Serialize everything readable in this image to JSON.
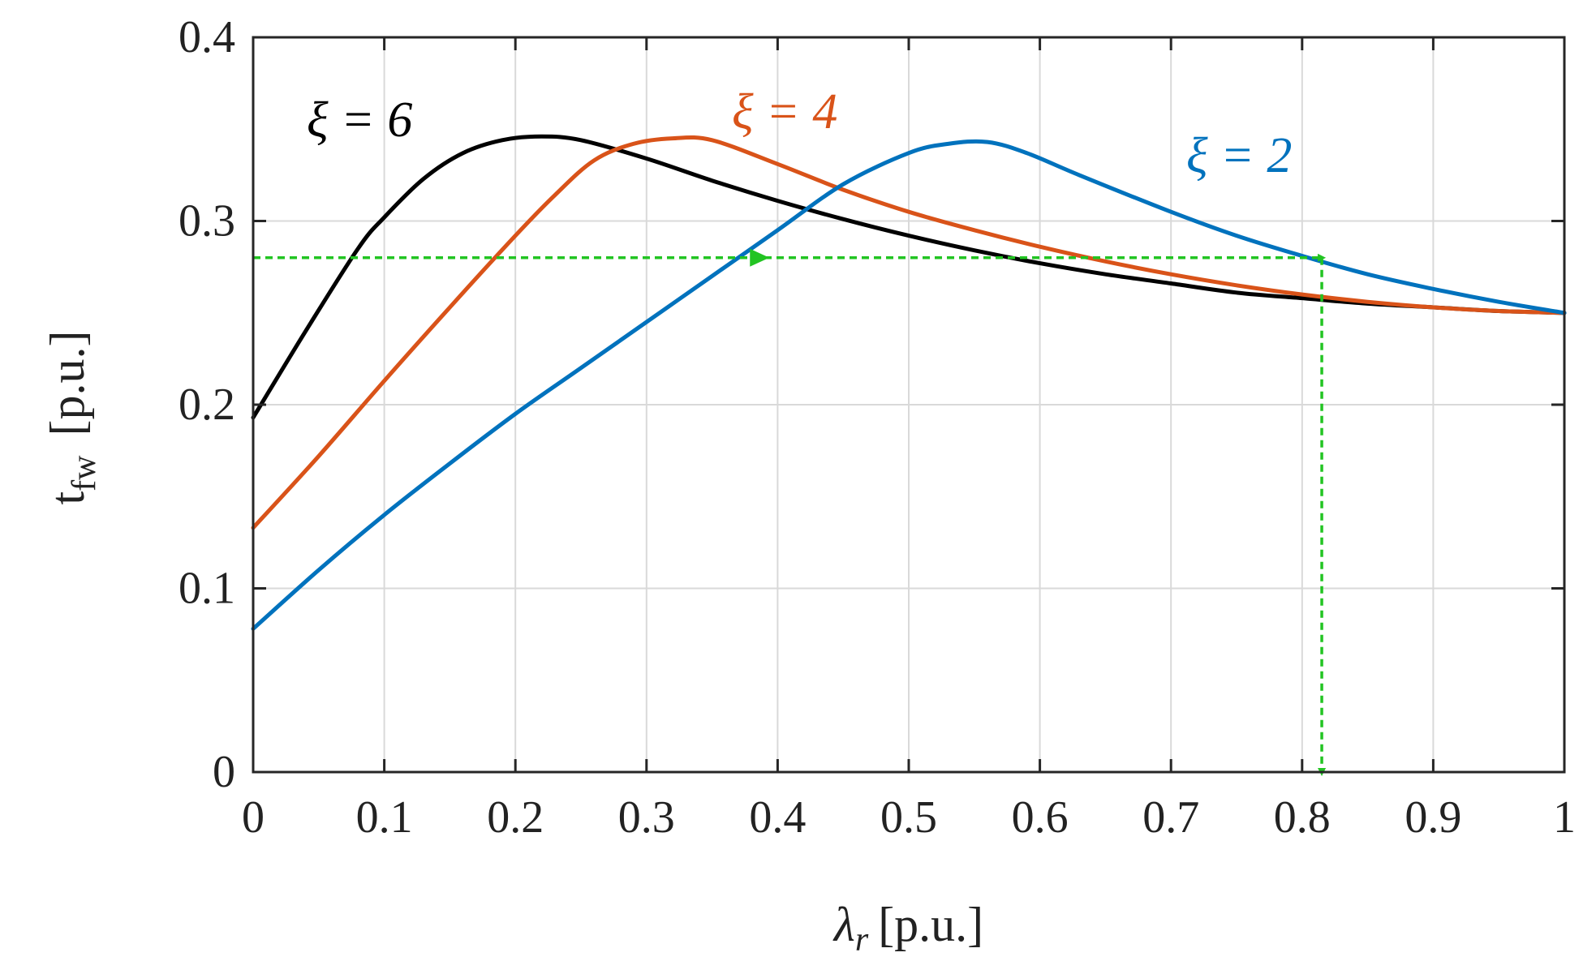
{
  "chart_data": {
    "type": "line",
    "title": "",
    "xlabel": {
      "symbol": "λ",
      "subscript": "r",
      "unit": "[p.u.]"
    },
    "ylabel": {
      "symbol": "t",
      "subscript": "fw",
      "unit": "[p.u.]"
    },
    "xlim": [
      0,
      1
    ],
    "ylim": [
      0,
      0.4
    ],
    "x_ticks": [
      "0",
      "0.1",
      "0.2",
      "0.3",
      "0.4",
      "0.5",
      "0.6",
      "0.7",
      "0.8",
      "0.9",
      "1"
    ],
    "y_ticks": [
      "0",
      "0.1",
      "0.2",
      "0.3",
      "0.4"
    ],
    "grid": true,
    "series": [
      {
        "name": "ξ = 6",
        "color": "#000000",
        "x": [
          0,
          0.04,
          0.08,
          0.1,
          0.13,
          0.16,
          0.19,
          0.22,
          0.25,
          0.3,
          0.35,
          0.4,
          0.45,
          0.5,
          0.55,
          0.6,
          0.65,
          0.7,
          0.75,
          0.8,
          0.85,
          0.9,
          0.95,
          1.0
        ],
        "y": [
          0.193,
          0.24,
          0.285,
          0.302,
          0.323,
          0.337,
          0.344,
          0.346,
          0.344,
          0.334,
          0.322,
          0.311,
          0.301,
          0.292,
          0.284,
          0.277,
          0.271,
          0.266,
          0.261,
          0.258,
          0.255,
          0.253,
          0.251,
          0.25
        ]
      },
      {
        "name": "ξ = 4",
        "color": "#D95319",
        "x": [
          0,
          0.05,
          0.1,
          0.15,
          0.2,
          0.23,
          0.26,
          0.29,
          0.32,
          0.35,
          0.4,
          0.45,
          0.5,
          0.55,
          0.6,
          0.65,
          0.7,
          0.75,
          0.8,
          0.85,
          0.9,
          0.95,
          1.0
        ],
        "y": [
          0.133,
          0.172,
          0.213,
          0.253,
          0.292,
          0.314,
          0.333,
          0.342,
          0.345,
          0.344,
          0.331,
          0.317,
          0.305,
          0.295,
          0.286,
          0.278,
          0.271,
          0.265,
          0.26,
          0.256,
          0.253,
          0.251,
          0.25
        ]
      },
      {
        "name": "ξ = 2",
        "color": "#0072BD",
        "x": [
          0,
          0.05,
          0.1,
          0.15,
          0.2,
          0.25,
          0.3,
          0.35,
          0.4,
          0.45,
          0.5,
          0.53,
          0.56,
          0.59,
          0.63,
          0.7,
          0.75,
          0.8,
          0.85,
          0.9,
          0.95,
          1.0
        ],
        "y": [
          0.078,
          0.11,
          0.14,
          0.168,
          0.195,
          0.22,
          0.245,
          0.27,
          0.295,
          0.32,
          0.337,
          0.342,
          0.343,
          0.337,
          0.325,
          0.305,
          0.292,
          0.281,
          0.271,
          0.263,
          0.256,
          0.25
        ]
      }
    ],
    "annotations": [
      {
        "type": "dashed-arrow",
        "color": "#22C422",
        "from": [
          0,
          0.28
        ],
        "to": [
          0.815,
          0.28
        ],
        "mid_arrow_at": [
          0.39,
          0.28
        ]
      },
      {
        "type": "dashed-arrow",
        "color": "#22C422",
        "from": [
          0.815,
          0.28
        ],
        "to": [
          0.815,
          0.0
        ]
      }
    ]
  }
}
